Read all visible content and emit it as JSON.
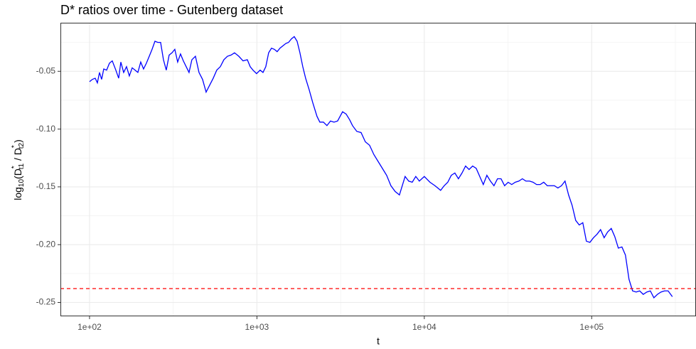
{
  "chart_data": {
    "type": "line",
    "title": "D* ratios over time - Gutenberg dataset",
    "xlabel": "t",
    "ylabel": [
      "log",
      "10",
      "(D",
      "*",
      "t1",
      " / D",
      "*",
      "t2",
      ")"
    ],
    "xscale": "log",
    "xlim": [
      67,
      420000
    ],
    "ylim": [
      -0.262,
      -0.008
    ],
    "xticks": [
      {
        "value": 100,
        "label": "1e+02"
      },
      {
        "value": 1000,
        "label": "1e+03"
      },
      {
        "value": 10000,
        "label": "1e+04"
      },
      {
        "value": 100000,
        "label": "1e+05"
      }
    ],
    "yticks": [
      -0.05,
      {
        "value": -0.1,
        "label": "-0.10"
      },
      -0.15,
      {
        "value": -0.2,
        "label": "-0.20"
      },
      -0.25
    ],
    "minor_xticks": [
      316.2,
      3162,
      31623,
      316228
    ],
    "minor_yticks": [
      -0.025,
      -0.075,
      -0.125,
      -0.175,
      -0.225
    ],
    "grid": true,
    "color": "#0000ff",
    "reference_line": {
      "value": -0.238,
      "color": "#ff0000",
      "dashed": true
    },
    "x": [
      100,
      104,
      108.1,
      111.4,
      114.7,
      118.1,
      121.6,
      126.5,
      131.5,
      136.7,
      143.6,
      149.3,
      153.8,
      159.9,
      166.3,
      172.9,
      179.8,
      187,
      194.4,
      202.2,
      210.2,
      218.6,
      227.4,
      236.4,
      245.9,
      255.6,
      265.8,
      276.4,
      287.4,
      298.9,
      310.8,
      323.2,
      336.1,
      349.5,
      363.4,
      377.9,
      393,
      408.7,
      429.2,
      450.7,
      473.3,
      497.1,
      521.9,
      548.2,
      575.6,
      604.5,
      634.7,
      666.6,
      699.8,
      734.9,
      779.3,
      826.4,
      876.4,
      911.4,
      947.6,
      995,
      1045,
      1087,
      1130,
      1175,
      1222,
      1271,
      1321,
      1374,
      1429,
      1486,
      1545,
      1607,
      1671,
      1738,
      1807,
      1879,
      1954,
      2052,
      2154,
      2285,
      2376,
      2495,
      2620,
      2751,
      2888,
      3034,
      3249,
      3411,
      3582,
      3725,
      3950,
      4190,
      4443,
      4710,
      4995,
      5297,
      5617,
      5956,
      6316,
      6697,
      7102,
      7680,
      8065,
      8470,
      8892,
      9340,
      10000,
      10810,
      11580,
      12520,
      13150,
      13810,
      14500,
      15230,
      15990,
      16800,
      17640,
      18510,
      19440,
      20420,
      21440,
      22510,
      23650,
      24830,
      26070,
      27380,
      28740,
      30180,
      31700,
      33290,
      34950,
      36710,
      38550,
      40480,
      42510,
      44640,
      46880,
      49220,
      51690,
      54280,
      56990,
      59850,
      62840,
      65990,
      69300,
      72780,
      76410,
      80250,
      84270,
      88490,
      92940,
      97590,
      102500,
      107600,
      113000,
      118700,
      124600,
      130900,
      137400,
      144300,
      151600,
      159100,
      167100,
      175500,
      184300,
      193500,
      203300,
      213400,
      224100,
      235300,
      247100,
      259400,
      272400,
      286100,
      303400
    ],
    "values": [
      -0.059,
      -0.057,
      -0.056,
      -0.06,
      -0.051,
      -0.057,
      -0.048,
      -0.049,
      -0.043,
      -0.041,
      -0.049,
      -0.056,
      -0.042,
      -0.051,
      -0.046,
      -0.054,
      -0.047,
      -0.049,
      -0.051,
      -0.042,
      -0.048,
      -0.043,
      -0.037,
      -0.031,
      -0.024,
      -0.025,
      -0.025,
      -0.04,
      -0.049,
      -0.036,
      -0.034,
      -0.031,
      -0.042,
      -0.035,
      -0.041,
      -0.046,
      -0.051,
      -0.04,
      -0.037,
      -0.051,
      -0.057,
      -0.068,
      -0.062,
      -0.056,
      -0.049,
      -0.046,
      -0.04,
      -0.037,
      -0.036,
      -0.034,
      -0.037,
      -0.041,
      -0.04,
      -0.046,
      -0.049,
      -0.052,
      -0.049,
      -0.051,
      -0.046,
      -0.034,
      -0.03,
      -0.031,
      -0.033,
      -0.03,
      -0.028,
      -0.026,
      -0.025,
      -0.022,
      -0.02,
      -0.024,
      -0.034,
      -0.046,
      -0.056,
      -0.066,
      -0.077,
      -0.089,
      -0.094,
      -0.094,
      -0.097,
      -0.093,
      -0.094,
      -0.093,
      -0.085,
      -0.087,
      -0.092,
      -0.097,
      -0.102,
      -0.103,
      -0.111,
      -0.114,
      -0.122,
      -0.128,
      -0.134,
      -0.14,
      -0.149,
      -0.154,
      -0.157,
      -0.141,
      -0.145,
      -0.146,
      -0.141,
      -0.145,
      -0.141,
      -0.146,
      -0.149,
      -0.153,
      -0.149,
      -0.146,
      -0.14,
      -0.138,
      -0.143,
      -0.138,
      -0.132,
      -0.135,
      -0.132,
      -0.134,
      -0.141,
      -0.148,
      -0.14,
      -0.145,
      -0.149,
      -0.143,
      -0.143,
      -0.149,
      -0.146,
      -0.148,
      -0.146,
      -0.145,
      -0.143,
      -0.145,
      -0.145,
      -0.146,
      -0.148,
      -0.148,
      -0.146,
      -0.149,
      -0.149,
      -0.149,
      -0.151,
      -0.149,
      -0.145,
      -0.157,
      -0.166,
      -0.179,
      -0.183,
      -0.181,
      -0.197,
      -0.198,
      -0.194,
      -0.191,
      -0.187,
      -0.194,
      -0.189,
      -0.186,
      -0.193,
      -0.203,
      -0.202,
      -0.209,
      -0.23,
      -0.24,
      -0.241,
      -0.24,
      -0.243,
      -0.241,
      -0.24,
      -0.246,
      -0.243,
      -0.241,
      -0.24,
      -0.24,
      -0.245
    ]
  }
}
